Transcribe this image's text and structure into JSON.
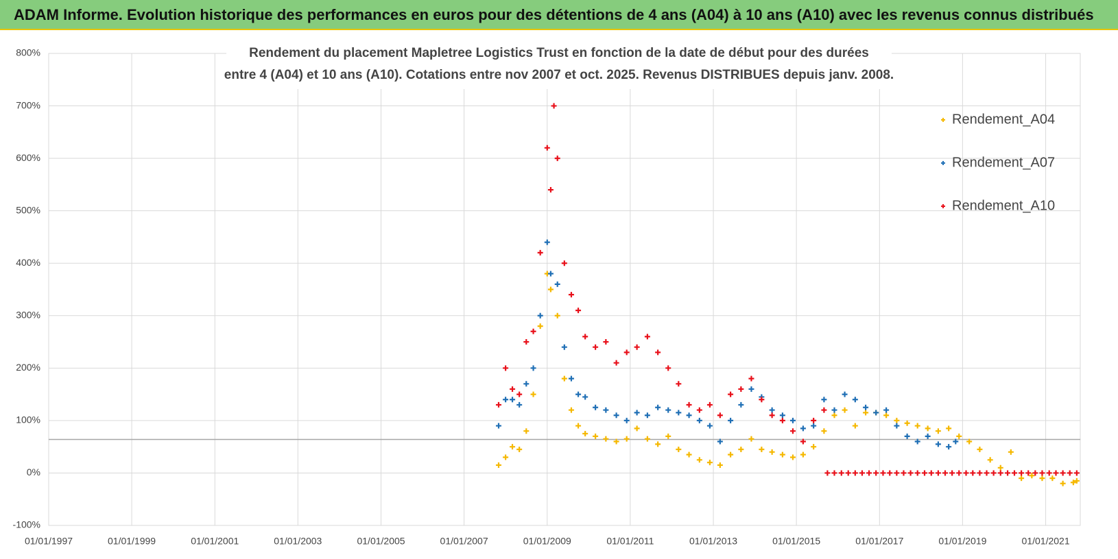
{
  "header": {
    "title": "ADAM Informe. Evolution historique des performances en euros pour des détentions de 4 ans (A04) à 10 ans (A10) avec les revenus connus distribués"
  },
  "chart_data": {
    "type": "scatter",
    "title_lines": [
      "Rendement du placement Mapletree Logistics Trust en fonction de la date de début pour des durées",
      "entre 4 (A04) et 10 ans (A10). Cotations entre nov 2007 et oct. 2025. Revenus DISTRIBUES depuis janv. 2008."
    ],
    "xlim": [
      "1997-01-01",
      "2021-11-01"
    ],
    "xticks": [
      {
        "value": "1997-01-01",
        "label": "01/01/1997"
      },
      {
        "value": "1999-01-01",
        "label": "01/01/1999"
      },
      {
        "value": "2001-01-01",
        "label": "01/01/2001"
      },
      {
        "value": "2003-01-01",
        "label": "01/01/2003"
      },
      {
        "value": "2005-01-01",
        "label": "01/01/2005"
      },
      {
        "value": "2007-01-01",
        "label": "01/01/2007"
      },
      {
        "value": "2009-01-01",
        "label": "01/01/2009"
      },
      {
        "value": "2011-01-01",
        "label": "01/01/2011"
      },
      {
        "value": "2013-01-01",
        "label": "01/01/2013"
      },
      {
        "value": "2015-01-01",
        "label": "01/01/2015"
      },
      {
        "value": "2017-01-01",
        "label": "01/01/2017"
      },
      {
        "value": "2019-01-01",
        "label": "01/01/2019"
      },
      {
        "value": "2021-01-01",
        "label": "01/01/2021"
      }
    ],
    "ylim": [
      -100,
      800
    ],
    "yticks": [
      {
        "value": -100,
        "label": "-100%"
      },
      {
        "value": 0,
        "label": "0%"
      },
      {
        "value": 100,
        "label": "100%"
      },
      {
        "value": 200,
        "label": "200%"
      },
      {
        "value": 300,
        "label": "300%"
      },
      {
        "value": 400,
        "label": "400%"
      },
      {
        "value": 500,
        "label": "500%"
      },
      {
        "value": 600,
        "label": "600%"
      },
      {
        "value": 700,
        "label": "700%"
      },
      {
        "value": 800,
        "label": "800%"
      }
    ],
    "grid": true,
    "reference_line": 64,
    "legend": "top-right",
    "series": [
      {
        "name": "Rendement_A04",
        "color": "#f5b800",
        "x": [
          "2007-11-01",
          "2008-01-01",
          "2008-03-01",
          "2008-05-01",
          "2008-07-01",
          "2008-09-01",
          "2008-11-01",
          "2009-01-01",
          "2009-02-01",
          "2009-04-01",
          "2009-06-01",
          "2009-08-01",
          "2009-10-01",
          "2009-12-01",
          "2010-03-01",
          "2010-06-01",
          "2010-09-01",
          "2010-12-01",
          "2011-03-01",
          "2011-06-01",
          "2011-09-01",
          "2011-12-01",
          "2012-03-01",
          "2012-06-01",
          "2012-09-01",
          "2012-12-01",
          "2013-03-01",
          "2013-06-01",
          "2013-09-01",
          "2013-12-01",
          "2014-03-01",
          "2014-06-01",
          "2014-09-01",
          "2014-12-01",
          "2015-03-01",
          "2015-06-01",
          "2015-09-01",
          "2015-12-01",
          "2016-03-01",
          "2016-06-01",
          "2016-09-01",
          "2016-12-01",
          "2017-03-01",
          "2017-06-01",
          "2017-09-01",
          "2017-12-01",
          "2018-03-01",
          "2018-06-01",
          "2018-09-01",
          "2018-12-01",
          "2019-03-01",
          "2019-06-01",
          "2019-09-01",
          "2019-12-01",
          "2020-03-01",
          "2020-06-01",
          "2020-09-01",
          "2020-12-01",
          "2021-03-01",
          "2021-06-01",
          "2021-09-01",
          "2021-10-01"
        ],
        "values": [
          15,
          30,
          50,
          45,
          80,
          150,
          280,
          380,
          350,
          300,
          180,
          120,
          90,
          75,
          70,
          65,
          60,
          65,
          85,
          65,
          55,
          70,
          45,
          35,
          25,
          20,
          15,
          35,
          45,
          65,
          45,
          40,
          35,
          30,
          35,
          50,
          80,
          110,
          120,
          90,
          115,
          115,
          110,
          100,
          95,
          90,
          85,
          80,
          85,
          70,
          60,
          45,
          25,
          10,
          40,
          -10,
          -5,
          -10,
          -10,
          -20,
          -18,
          -15
        ]
      },
      {
        "name": "Rendement_A07",
        "color": "#1f6fb5",
        "x": [
          "2007-11-01",
          "2008-01-01",
          "2008-03-01",
          "2008-05-01",
          "2008-07-01",
          "2008-09-01",
          "2008-11-01",
          "2009-01-01",
          "2009-02-01",
          "2009-04-01",
          "2009-06-01",
          "2009-08-01",
          "2009-10-01",
          "2009-12-01",
          "2010-03-01",
          "2010-06-01",
          "2010-09-01",
          "2010-12-01",
          "2011-03-01",
          "2011-06-01",
          "2011-09-01",
          "2011-12-01",
          "2012-03-01",
          "2012-06-01",
          "2012-09-01",
          "2012-12-01",
          "2013-03-01",
          "2013-06-01",
          "2013-09-01",
          "2013-12-01",
          "2014-03-01",
          "2014-06-01",
          "2014-09-01",
          "2014-12-01",
          "2015-03-01",
          "2015-06-01",
          "2015-09-01",
          "2015-12-01",
          "2016-03-01",
          "2016-06-01",
          "2016-09-01",
          "2016-12-01",
          "2017-03-01",
          "2017-06-01",
          "2017-09-01",
          "2017-12-01",
          "2018-03-01",
          "2018-06-01",
          "2018-09-01",
          "2018-11-01"
        ],
        "values": [
          90,
          140,
          140,
          130,
          170,
          200,
          300,
          440,
          380,
          360,
          240,
          180,
          150,
          145,
          125,
          120,
          110,
          100,
          115,
          110,
          125,
          120,
          115,
          110,
          100,
          90,
          60,
          100,
          130,
          160,
          145,
          120,
          110,
          100,
          85,
          90,
          140,
          120,
          150,
          140,
          125,
          115,
          120,
          90,
          70,
          60,
          70,
          55,
          50,
          60
        ]
      },
      {
        "name": "Rendement_A10",
        "color": "#e8101a",
        "x": [
          "2007-11-01",
          "2008-01-01",
          "2008-03-01",
          "2008-05-01",
          "2008-07-01",
          "2008-09-01",
          "2008-11-01",
          "2009-01-01",
          "2009-02-01",
          "2009-03-01",
          "2009-04-01",
          "2009-06-01",
          "2009-08-01",
          "2009-10-01",
          "2009-12-01",
          "2010-03-01",
          "2010-06-01",
          "2010-09-01",
          "2010-12-01",
          "2011-03-01",
          "2011-06-01",
          "2011-09-01",
          "2011-12-01",
          "2012-03-01",
          "2012-06-01",
          "2012-09-01",
          "2012-12-01",
          "2013-03-01",
          "2013-06-01",
          "2013-09-01",
          "2013-12-01",
          "2014-03-01",
          "2014-06-01",
          "2014-09-01",
          "2014-12-01",
          "2015-03-01",
          "2015-06-01",
          "2015-09-01",
          "2015-10-01",
          "2015-12-01",
          "2016-02-01",
          "2016-04-01",
          "2016-06-01",
          "2016-08-01",
          "2016-10-01",
          "2016-12-01",
          "2017-02-01",
          "2017-04-01",
          "2017-06-01",
          "2017-08-01",
          "2017-10-01",
          "2017-12-01",
          "2018-02-01",
          "2018-04-01",
          "2018-06-01",
          "2018-08-01",
          "2018-10-01",
          "2018-12-01",
          "2019-02-01",
          "2019-04-01",
          "2019-06-01",
          "2019-08-01",
          "2019-10-01",
          "2019-12-01",
          "2020-02-01",
          "2020-04-01",
          "2020-06-01",
          "2020-08-01",
          "2020-10-01",
          "2020-12-01",
          "2021-02-01",
          "2021-04-01",
          "2021-06-01",
          "2021-08-01",
          "2021-10-01"
        ],
        "values": [
          130,
          200,
          160,
          150,
          250,
          270,
          420,
          620,
          540,
          700,
          600,
          400,
          340,
          310,
          260,
          240,
          250,
          210,
          230,
          240,
          260,
          230,
          200,
          170,
          130,
          120,
          130,
          110,
          150,
          160,
          180,
          140,
          110,
          100,
          80,
          60,
          100,
          120,
          0,
          0,
          0,
          0,
          0,
          0,
          0,
          0,
          0,
          0,
          0,
          0,
          0,
          0,
          0,
          0,
          0,
          0,
          0,
          0,
          0,
          0,
          0,
          0,
          0,
          0,
          0,
          0,
          0,
          0,
          0,
          0,
          0,
          0,
          0,
          0,
          0
        ]
      }
    ]
  }
}
